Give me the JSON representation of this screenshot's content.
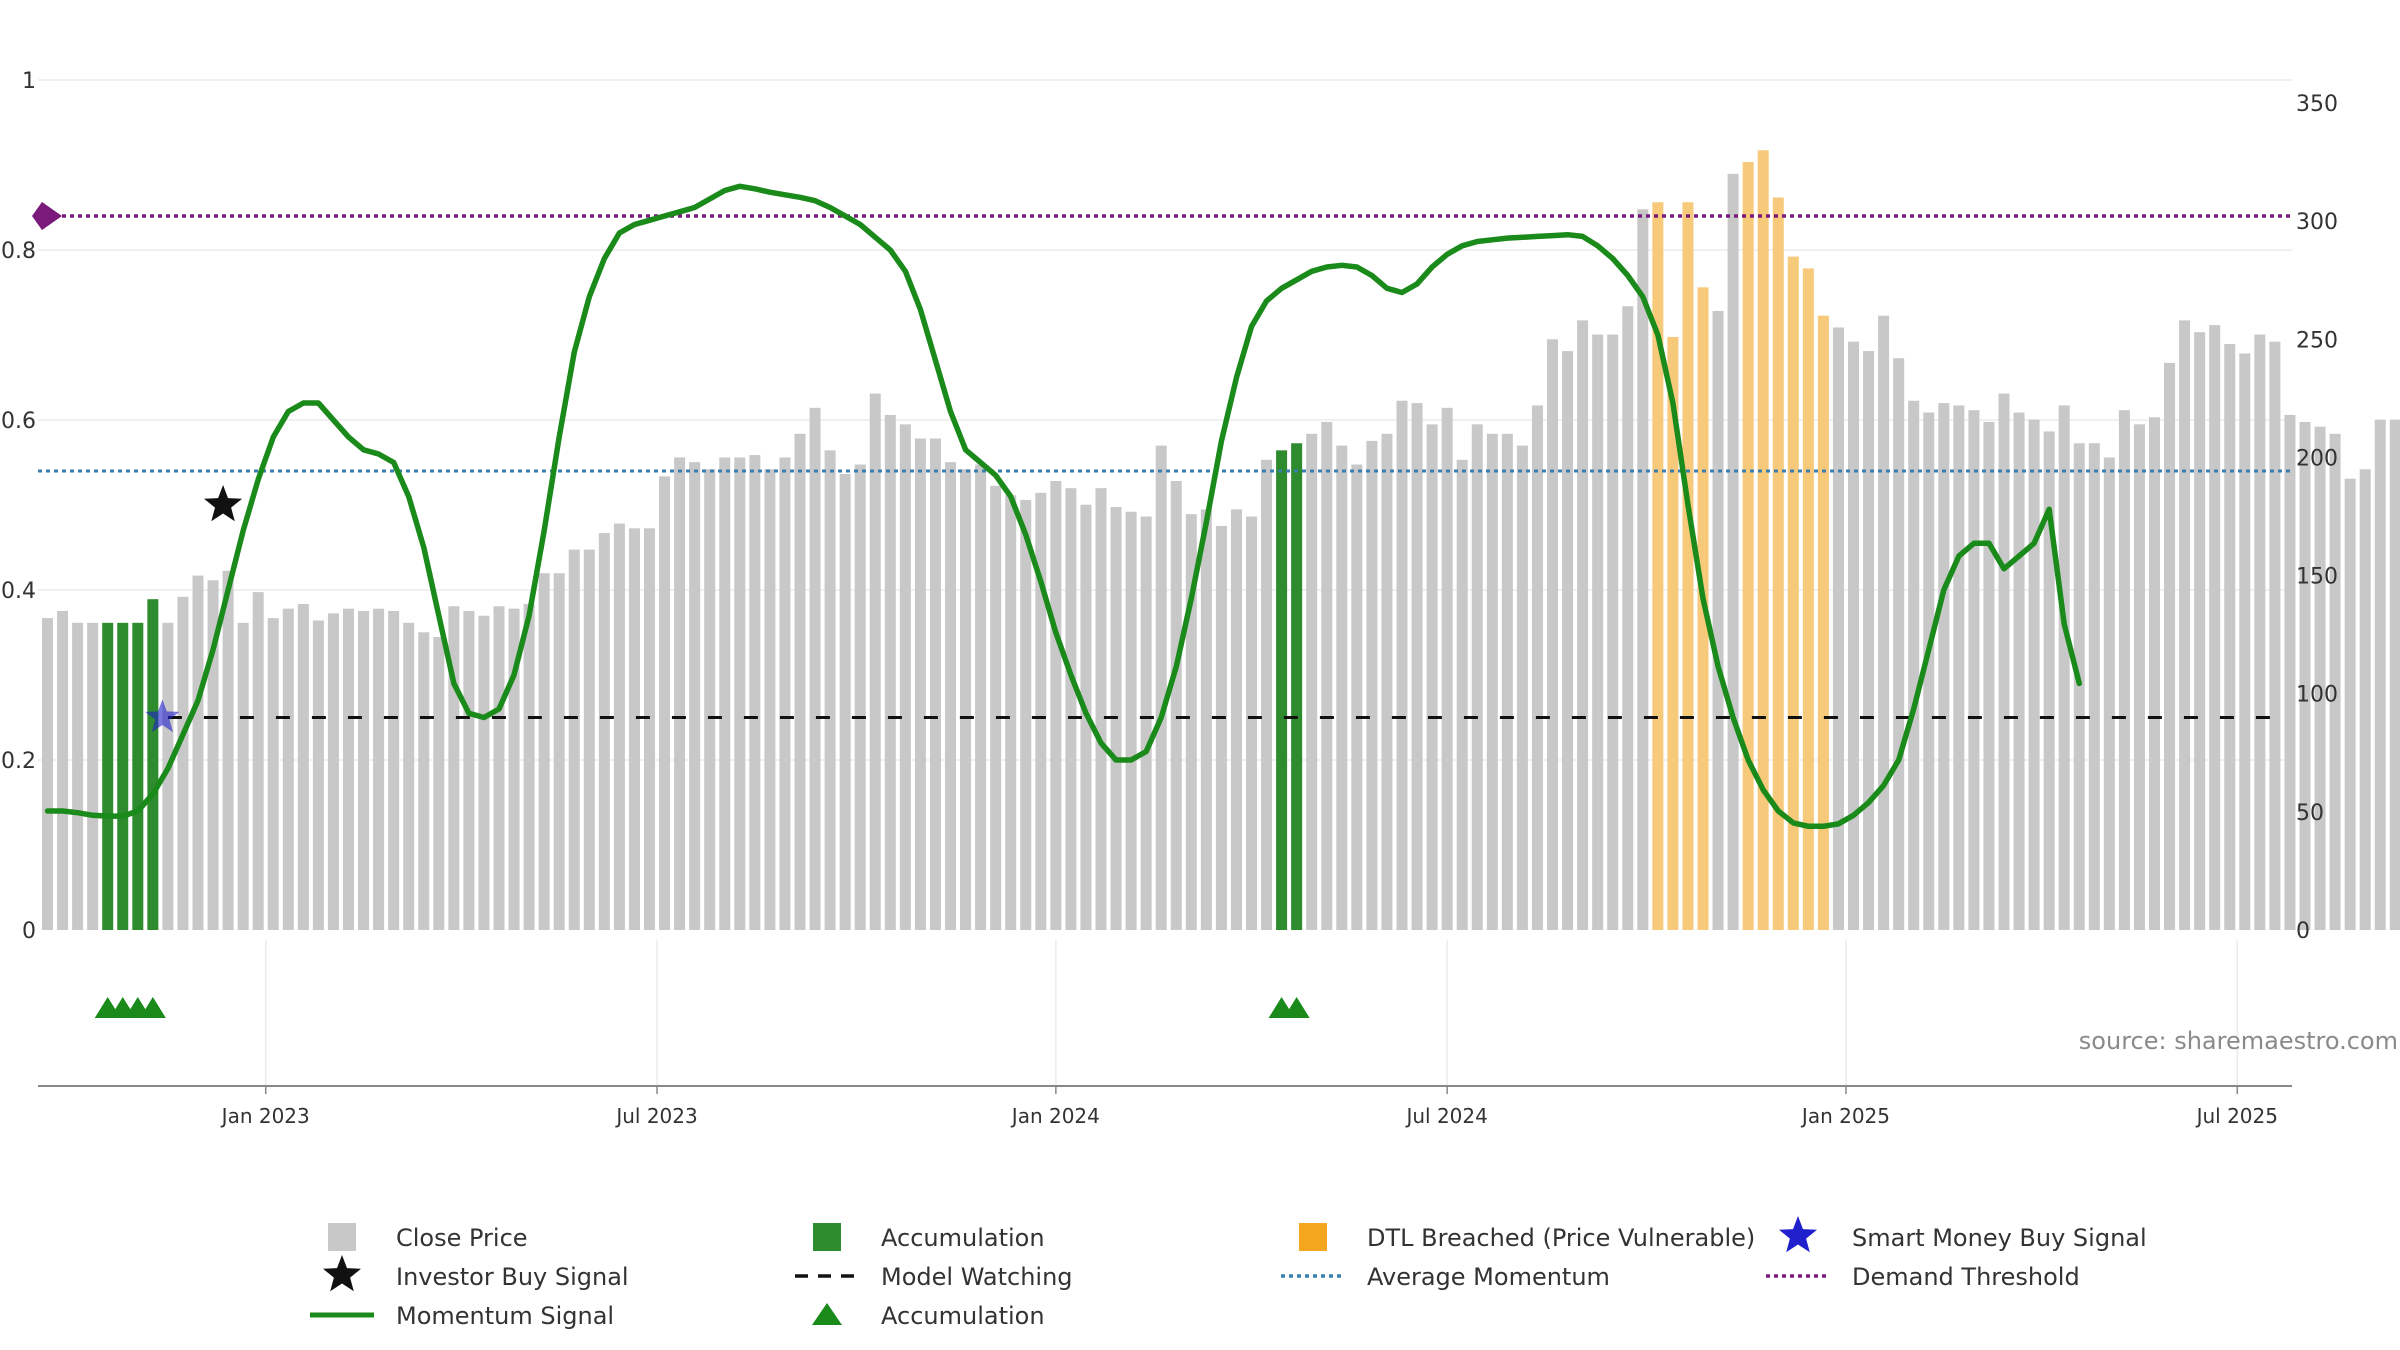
{
  "chart_data": {
    "type": "bar+line",
    "source": "source: sharemaestro.com",
    "left_axis": {
      "ylim": [
        0,
        1
      ],
      "ticks": [
        "0",
        "0.2",
        "0.4",
        "0.6",
        "0.8",
        "1"
      ],
      "tick_values": [
        0,
        0.2,
        0.4,
        0.6,
        0.8,
        1
      ]
    },
    "right_axis": {
      "ylim": [
        0,
        350
      ],
      "ticks": [
        "0",
        "50",
        "100",
        "150",
        "200",
        "250",
        "300",
        "350"
      ],
      "tick_values": [
        0,
        50,
        100,
        150,
        200,
        250,
        300,
        350
      ]
    },
    "x_axis": {
      "start_week_index": 0,
      "tick_labels": [
        "Jan 2023",
        "Jul 2023",
        "Jan 2024",
        "Jul 2024",
        "Jan 2025",
        "Jul 2025"
      ],
      "tick_week_index": [
        14.5,
        40.5,
        67,
        93,
        119.5,
        145.5
      ]
    },
    "close_price": [
      132,
      135,
      130,
      130,
      130,
      130,
      130,
      140,
      130,
      141,
      150,
      148,
      152,
      130,
      143,
      132,
      136,
      138,
      131,
      134,
      136,
      135,
      136,
      135,
      130,
      126,
      124,
      137,
      135,
      133,
      137,
      136,
      138,
      151,
      151,
      161,
      161,
      168,
      172,
      170,
      170,
      192,
      200,
      198,
      195,
      200,
      200,
      201,
      195,
      200,
      210,
      221,
      203,
      193,
      197,
      227,
      218,
      214,
      208,
      208,
      198,
      195,
      197,
      188,
      184,
      182,
      185,
      190,
      187,
      180,
      187,
      179,
      177,
      175,
      205,
      190,
      176,
      178,
      171,
      178,
      175,
      199,
      203,
      206,
      210,
      215,
      205,
      197,
      207,
      210,
      224,
      223,
      214,
      221,
      199,
      214,
      210,
      210,
      205,
      222,
      250,
      245,
      258,
      252,
      252,
      264,
      305,
      308,
      251,
      308,
      272,
      262,
      320,
      325,
      330,
      310,
      285,
      280,
      260,
      255,
      249,
      245,
      260,
      242,
      224,
      219,
      223,
      222,
      220,
      215,
      227,
      219,
      216,
      211,
      222,
      206,
      206,
      200,
      220,
      214,
      217,
      240,
      258,
      253,
      256,
      248,
      244,
      252,
      249,
      218,
      215,
      213,
      210,
      191,
      195,
      216,
      216
    ],
    "accumulation_bar_weeks": [
      4,
      5,
      6,
      7,
      82,
      83
    ],
    "dtl_breached_weeks": [
      107,
      108,
      109,
      110,
      113,
      114,
      115,
      116,
      117,
      118
    ],
    "momentum_signal": [
      0.14,
      0.14,
      0.138,
      0.135,
      0.134,
      0.134,
      0.14,
      0.16,
      0.19,
      0.23,
      0.27,
      0.33,
      0.4,
      0.47,
      0.53,
      0.58,
      0.61,
      0.62,
      0.62,
      0.6,
      0.58,
      0.565,
      0.56,
      0.55,
      0.51,
      0.45,
      0.37,
      0.29,
      0.255,
      0.25,
      0.26,
      0.3,
      0.37,
      0.47,
      0.58,
      0.68,
      0.745,
      0.79,
      0.82,
      0.83,
      0.835,
      0.84,
      0.845,
      0.85,
      0.86,
      0.87,
      0.875,
      0.872,
      0.868,
      0.865,
      0.862,
      0.858,
      0.85,
      0.84,
      0.83,
      0.815,
      0.8,
      0.775,
      0.73,
      0.67,
      0.61,
      0.565,
      0.55,
      0.535,
      0.51,
      0.465,
      0.41,
      0.35,
      0.3,
      0.255,
      0.22,
      0.2,
      0.2,
      0.21,
      0.25,
      0.31,
      0.39,
      0.48,
      0.575,
      0.65,
      0.71,
      0.74,
      0.755,
      0.765,
      0.775,
      0.78,
      0.782,
      0.78,
      0.77,
      0.755,
      0.75,
      0.76,
      0.78,
      0.795,
      0.805,
      0.81,
      0.812,
      0.814,
      0.815,
      0.816,
      0.817,
      0.818,
      0.816,
      0.805,
      0.79,
      0.77,
      0.745,
      0.7,
      0.62,
      0.5,
      0.39,
      0.31,
      0.25,
      0.2,
      0.165,
      0.14,
      0.126,
      0.122,
      0.122,
      0.125,
      0.135,
      0.15,
      0.17,
      0.2,
      0.26,
      0.33,
      0.4,
      0.44,
      0.455,
      0.455,
      0.425,
      0.44,
      0.455,
      0.495,
      0.36,
      0.29
    ],
    "momentum_start_week": 0,
    "average_momentum": 0.54,
    "demand_threshold": 0.84,
    "model_watching_level": 0.25,
    "model_watching_start_week": 8,
    "investor_buy_signal": {
      "week": 11,
      "value": 0.5
    },
    "smart_money_buy_signal": {
      "week": 7.5,
      "value": 0.25
    },
    "accumulation_triangle_weeks": [
      4,
      5,
      6,
      7,
      82,
      83
    ],
    "legend": [
      {
        "label": "Close Price",
        "symbol": "gray-square"
      },
      {
        "label": "Accumulation",
        "symbol": "green-square"
      },
      {
        "label": "DTL Breached (Price Vulnerable)",
        "symbol": "orange-square"
      },
      {
        "label": "Smart Money Buy Signal",
        "symbol": "blue-star"
      },
      {
        "label": "Investor Buy Signal",
        "symbol": "black-star"
      },
      {
        "label": "Model Watching",
        "symbol": "black-dashed-line"
      },
      {
        "label": "Average Momentum",
        "symbol": "blue-dotted-line"
      },
      {
        "label": "Demand Threshold",
        "symbol": "purple-dotted-line"
      },
      {
        "label": "Momentum Signal",
        "symbol": "green-line"
      },
      {
        "label": "Accumulation",
        "symbol": "green-triangle"
      }
    ],
    "colors": {
      "close": "#c8c8c8",
      "accumulation": "#2e8b2e",
      "dtl": "#f7c97a",
      "momentum": "#1a8a1a",
      "average": "#3a7fb0",
      "demand": "#7a1a7a",
      "smart_star": "#2020cc",
      "investor_star": "#111111"
    }
  }
}
